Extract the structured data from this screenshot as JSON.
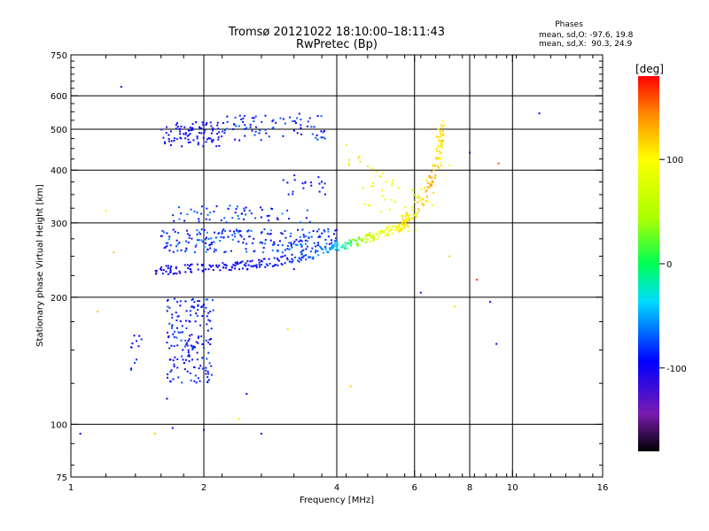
{
  "chart_data": {
    "type": "scatter",
    "title": "Tromsø 20121022 18:10:00–18:11:43",
    "subtitle": "RwPretec (Bp)",
    "xlabel": "Frequency [MHz]",
    "ylabel": "Stationary phase Virtual Height [km]",
    "x_scale": "log",
    "y_scale": "log",
    "xlim": [
      1,
      16
    ],
    "ylim": [
      75,
      750
    ],
    "x_ticks": [
      1,
      2,
      4,
      6,
      8,
      10,
      16
    ],
    "y_ticks": [
      75,
      100,
      200,
      300,
      400,
      500,
      600,
      750
    ],
    "grid": true,
    "legend": {
      "title": "Phases",
      "lines": [
        "mean, sd,O: -97.6, 19.8",
        "mean, sd,X:  90.3, 24.9"
      ],
      "placement": "top-right"
    },
    "colorbar": {
      "title": "[deg]",
      "ticks": [
        100,
        0,
        -100
      ],
      "range": [
        -180,
        180
      ]
    },
    "bands": [
      {
        "x": [
          1.6,
          2.2
        ],
        "y": [
          455,
          520
        ],
        "phase": [
          -115,
          -90
        ],
        "n": 90
      },
      {
        "x": [
          2.2,
          3.8
        ],
        "y": [
          470,
          545
        ],
        "phase": [
          -110,
          -70
        ],
        "n": 80
      },
      {
        "x": [
          3.0,
          3.8
        ],
        "y": [
          350,
          390
        ],
        "phase": [
          -110,
          -90
        ],
        "n": 20
      },
      {
        "x": [
          1.6,
          4.0
        ],
        "y": [
          255,
          290
        ],
        "phase": [
          -115,
          -60
        ],
        "n": 220
      },
      {
        "x": [
          1.7,
          3.5
        ],
        "y": [
          300,
          330
        ],
        "phase": [
          -110,
          -60
        ],
        "n": 60
      },
      {
        "x": [
          1.65,
          2.1
        ],
        "y": [
          125,
          200
        ],
        "phase": [
          -115,
          -75
        ],
        "n": 170
      },
      {
        "x": [
          1.35,
          1.45
        ],
        "y": [
          130,
          165
        ],
        "phase": [
          -110,
          -80
        ],
        "n": 12
      }
    ],
    "traces": [
      {
        "name": "",
        "x": [
          1.55,
          2.0,
          2.5,
          3.0,
          3.5,
          4.0,
          4.5,
          5.0,
          5.5,
          5.8
        ],
        "y": [
          232,
          234,
          238,
          244,
          252,
          263,
          272,
          282,
          292,
          300
        ],
        "phase": [
          -110,
          -105,
          -100,
          -95,
          -80,
          -45,
          40,
          85,
          100,
          110
        ],
        "spread": 0.05,
        "n": 320
      },
      {
        "x": [
          5.6,
          6.0,
          6.3,
          6.5,
          6.7,
          6.85,
          6.95
        ],
        "y": [
          300,
          320,
          345,
          375,
          410,
          445,
          500
        ],
        "phase": [
          105,
          115,
          120,
          130,
          120,
          110,
          115
        ],
        "spread": 0.08,
        "n": 90
      },
      {
        "x": [
          4.2,
          4.6,
          5.0,
          5.5,
          6.0,
          6.5,
          6.9
        ],
        "y": [
          420,
          380,
          355,
          335,
          320,
          350,
          480
        ],
        "phase": [
          110,
          100,
          95,
          90,
          85,
          100,
          110
        ],
        "spread": 0.25,
        "n": 70
      }
    ],
    "isolated_points": [
      {
        "x": 1.3,
        "y": 630,
        "phase": -110
      },
      {
        "x": 1.05,
        "y": 95,
        "phase": -100
      },
      {
        "x": 1.15,
        "y": 185,
        "phase": 120
      },
      {
        "x": 1.2,
        "y": 320,
        "phase": 110
      },
      {
        "x": 1.25,
        "y": 255,
        "phase": 120
      },
      {
        "x": 1.55,
        "y": 95,
        "phase": 120
      },
      {
        "x": 1.65,
        "y": 115,
        "phase": -100
      },
      {
        "x": 1.7,
        "y": 98,
        "phase": -110
      },
      {
        "x": 2.0,
        "y": 97,
        "phase": -110
      },
      {
        "x": 2.4,
        "y": 103,
        "phase": 110
      },
      {
        "x": 2.7,
        "y": 95,
        "phase": -110
      },
      {
        "x": 2.5,
        "y": 118,
        "phase": -100
      },
      {
        "x": 3.1,
        "y": 168,
        "phase": 110
      },
      {
        "x": 3.2,
        "y": 233,
        "phase": -100
      },
      {
        "x": 4.3,
        "y": 123,
        "phase": 120
      },
      {
        "x": 6.2,
        "y": 205,
        "phase": -110
      },
      {
        "x": 7.2,
        "y": 250,
        "phase": 120
      },
      {
        "x": 7.4,
        "y": 190,
        "phase": 110
      },
      {
        "x": 8.0,
        "y": 440,
        "phase": -110
      },
      {
        "x": 8.3,
        "y": 220,
        "phase": 170
      },
      {
        "x": 8.9,
        "y": 195,
        "phase": -110
      },
      {
        "x": 9.2,
        "y": 155,
        "phase": -100
      },
      {
        "x": 9.3,
        "y": 415,
        "phase": 160
      },
      {
        "x": 11.5,
        "y": 545,
        "phase": -110
      },
      {
        "x": 7.2,
        "y": 410,
        "phase": 100
      }
    ]
  }
}
